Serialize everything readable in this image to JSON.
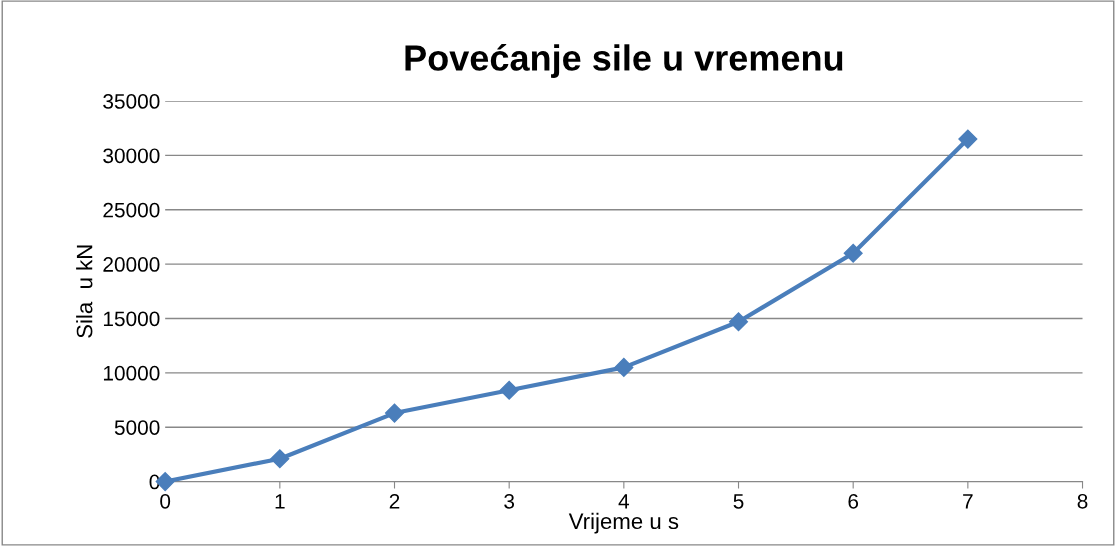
{
  "chart_data": {
    "type": "line",
    "title": "Povećanje sile u vremenu",
    "xlabel": "Vrijeme u s",
    "ylabel": "Sila  u kN",
    "x": [
      0,
      1,
      2,
      3,
      4,
      5,
      6,
      7
    ],
    "series": [
      {
        "color": "#4a7ebb",
        "values": [
          0,
          2100,
          6300,
          8400,
          10500,
          14700,
          21000,
          31500
        ]
      }
    ],
    "xlim": [
      0,
      8
    ],
    "xticks": [
      0,
      1,
      2,
      3,
      4,
      5,
      6,
      7,
      8
    ],
    "ylim": [
      0,
      35000
    ],
    "yticks": [
      0,
      5000,
      10000,
      15000,
      20000,
      25000,
      30000,
      35000
    ],
    "grid": "y",
    "marker": "diamond",
    "line_style": "solid"
  }
}
